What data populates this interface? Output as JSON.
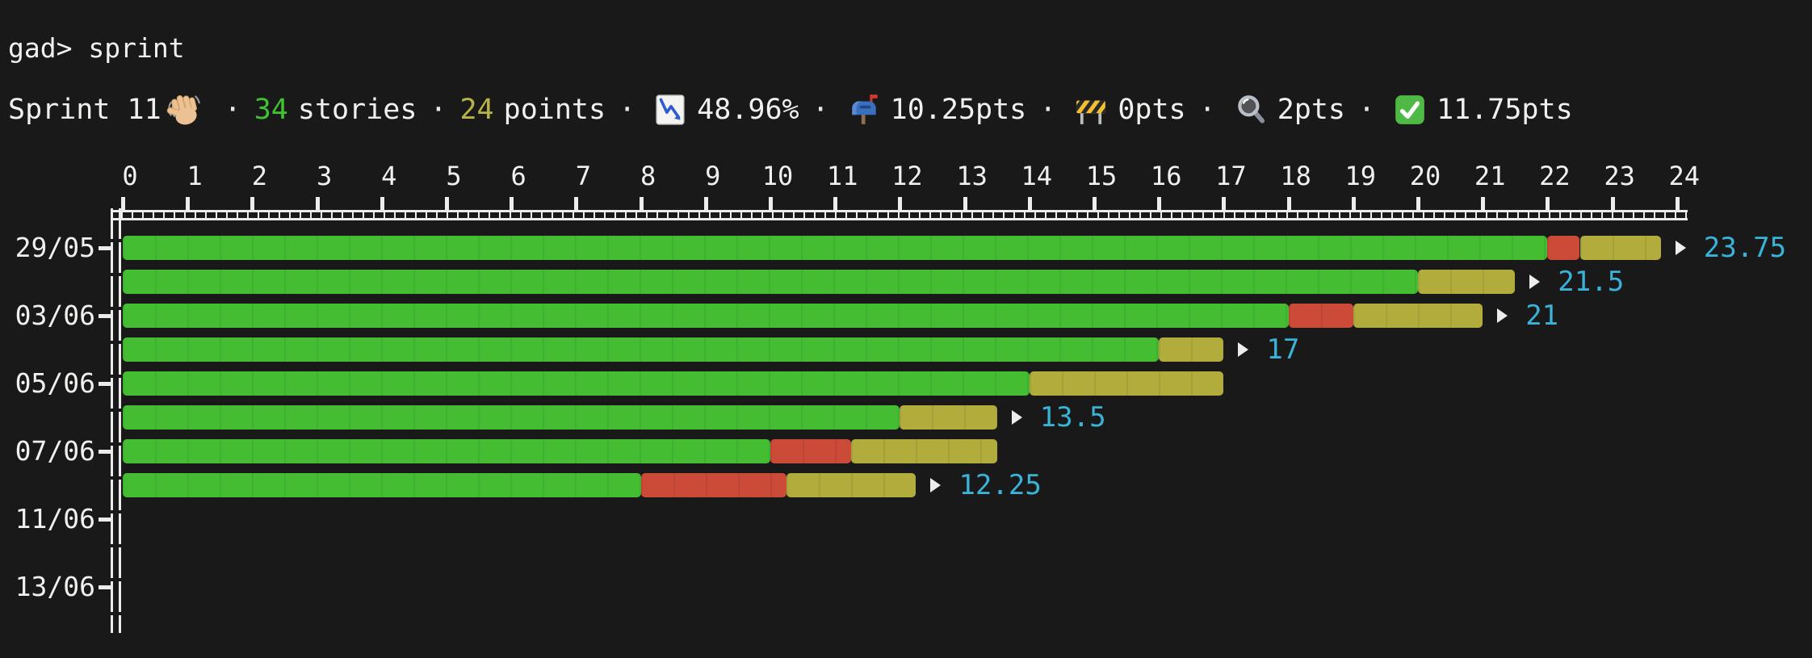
{
  "terminal": {
    "prompt": "gad>",
    "command": "sprint"
  },
  "status": {
    "separator": "·",
    "sprint_label": "Sprint 11",
    "wave_icon": "waving-hand",
    "stories": {
      "count": "34",
      "label": "stories"
    },
    "points": {
      "count": "24",
      "label": "points"
    },
    "burn_pct": {
      "icon": "chart-decreasing",
      "value": "48.96%"
    },
    "open_pts": {
      "icon": "mailbox",
      "value": "10.25pts"
    },
    "progress_pts": {
      "icon": "construction",
      "value": "0pts"
    },
    "review_pts": {
      "icon": "magnifying-glass",
      "value": "2pts"
    },
    "done_pts": {
      "icon": "check-mark",
      "value": "11.75pts"
    }
  },
  "chart_data": {
    "type": "bar",
    "orientation": "horizontal",
    "title": "",
    "xlabel": "",
    "ylabel": "",
    "x_axis": {
      "min": 0,
      "max": 24,
      "tick_step": 1,
      "ticks": [
        0,
        1,
        2,
        3,
        4,
        5,
        6,
        7,
        8,
        9,
        10,
        11,
        12,
        13,
        14,
        15,
        16,
        17,
        18,
        19,
        20,
        21,
        22,
        23,
        24
      ]
    },
    "unit": "points",
    "grid": false,
    "colors": {
      "green": "#44bd33",
      "red": "#cc4a38",
      "yellow": "#b2ac3c",
      "value_label": "#39b3d8",
      "axis": "#ebebe9"
    },
    "rows": [
      {
        "date": "29/05",
        "segments": [
          {
            "color": "green",
            "points": 22
          },
          {
            "color": "red",
            "points": 0.5
          },
          {
            "color": "yellow",
            "points": 1.25
          }
        ],
        "total": 23.75,
        "label": "23.75"
      },
      {
        "date": null,
        "segments": [
          {
            "color": "green",
            "points": 20
          },
          {
            "color": "yellow",
            "points": 1.5
          }
        ],
        "total": 21.5,
        "label": "21.5"
      },
      {
        "date": "03/06",
        "segments": [
          {
            "color": "green",
            "points": 18
          },
          {
            "color": "red",
            "points": 1
          },
          {
            "color": "yellow",
            "points": 2
          }
        ],
        "total": 21,
        "label": "21"
      },
      {
        "date": null,
        "segments": [
          {
            "color": "green",
            "points": 16
          },
          {
            "color": "yellow",
            "points": 1
          }
        ],
        "total": 17,
        "label": "17"
      },
      {
        "date": "05/06",
        "segments": [
          {
            "color": "green",
            "points": 14
          },
          {
            "color": "yellow",
            "points": 3
          }
        ],
        "total": 17,
        "label": null
      },
      {
        "date": null,
        "segments": [
          {
            "color": "green",
            "points": 12
          },
          {
            "color": "yellow",
            "points": 1.5
          }
        ],
        "total": 13.5,
        "label": "13.5"
      },
      {
        "date": "07/06",
        "segments": [
          {
            "color": "green",
            "points": 10
          },
          {
            "color": "red",
            "points": 1.25
          },
          {
            "color": "yellow",
            "points": 2.25
          }
        ],
        "total": 13.5,
        "label": null
      },
      {
        "date": null,
        "segments": [
          {
            "color": "green",
            "points": 8
          },
          {
            "color": "red",
            "points": 2.25
          },
          {
            "color": "yellow",
            "points": 2
          }
        ],
        "total": 12.25,
        "label": "12.25"
      },
      {
        "date": "11/06",
        "segments": [],
        "total": 0,
        "label": null
      },
      {
        "date": null,
        "segments": [],
        "total": 0,
        "label": null
      },
      {
        "date": "13/06",
        "segments": [],
        "total": 0,
        "label": null
      },
      {
        "date": null,
        "segments": [],
        "total": 0,
        "label": null
      }
    ]
  }
}
